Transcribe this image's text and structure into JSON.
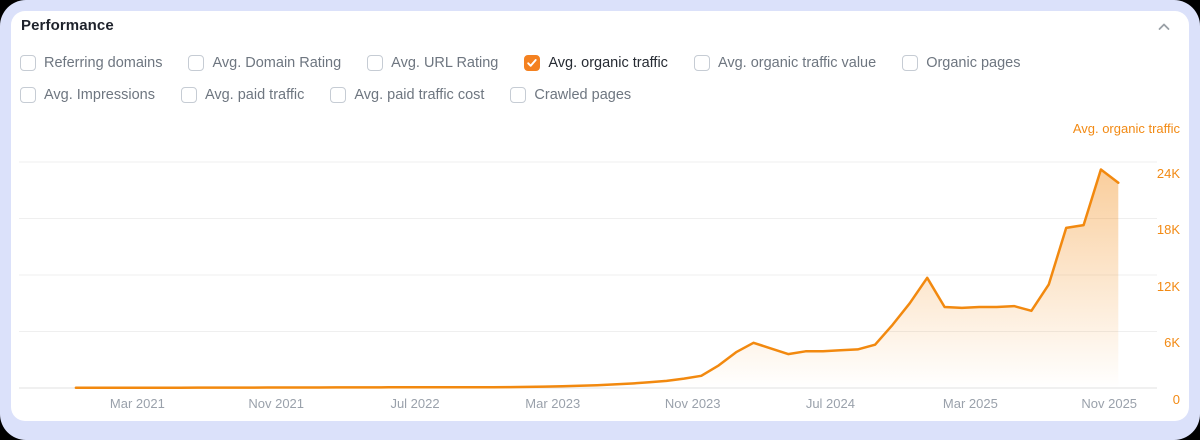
{
  "panel": {
    "title": "Performance",
    "collapse_icon": "chevron-up"
  },
  "metrics": {
    "rows": [
      [
        {
          "label": "Referring domains",
          "checked": false
        },
        {
          "label": "Avg. Domain Rating",
          "checked": false
        },
        {
          "label": "Avg. URL Rating",
          "checked": false
        },
        {
          "label": "Avg. organic traffic",
          "checked": true
        },
        {
          "label": "Avg. organic traffic value",
          "checked": false
        },
        {
          "label": "Organic pages",
          "checked": false
        }
      ],
      [
        {
          "label": "Avg. Impressions",
          "checked": false
        },
        {
          "label": "Avg. paid traffic",
          "checked": false
        },
        {
          "label": "Avg. paid traffic cost",
          "checked": false
        },
        {
          "label": "Crawled pages",
          "checked": false
        }
      ]
    ]
  },
  "colors": {
    "accent_orange": "#f48120",
    "line_orange": "#f2890f",
    "axis_tick_gray": "#9aa1ab",
    "gridline": "#efefef",
    "baseline": "#e2e2e2",
    "page_background": "#dbe1fa",
    "card_background": "#ffffff"
  },
  "chart_data": {
    "type": "area",
    "title": "Avg. organic traffic",
    "ylabel": "Avg. organic traffic",
    "legend_position": "top-right",
    "grid": true,
    "ylim": [
      0,
      25800
    ],
    "y_ticks": [
      {
        "label": "24K",
        "value": 24000
      },
      {
        "label": "18K",
        "value": 18000
      },
      {
        "label": "12K",
        "value": 12000
      },
      {
        "label": "6K",
        "value": 6000
      },
      {
        "label": "0",
        "value": 0
      }
    ],
    "x_ticks": [
      {
        "label": "Mar 2021",
        "pos": 0.104
      },
      {
        "label": "Nov 2021",
        "pos": 0.226
      },
      {
        "label": "Jul 2022",
        "pos": 0.348
      },
      {
        "label": "Mar 2023",
        "pos": 0.469
      },
      {
        "label": "Nov 2023",
        "pos": 0.592
      },
      {
        "label": "Jul 2024",
        "pos": 0.713
      },
      {
        "label": "Mar 2025",
        "pos": 0.836
      },
      {
        "label": "Nov 2025",
        "pos": 0.958
      }
    ],
    "x_start_frac": 0.05,
    "x_end_frac": 0.966,
    "area_color": "#f28a14",
    "series": [
      {
        "name": "Avg. organic traffic",
        "color": "#f2890f",
        "interval": "monthly",
        "start": "Nov 2020",
        "end": "Nov 2025",
        "values": [
          20,
          20,
          20,
          30,
          30,
          30,
          30,
          40,
          40,
          40,
          40,
          50,
          50,
          50,
          50,
          60,
          60,
          60,
          70,
          70,
          70,
          80,
          80,
          90,
          90,
          100,
          120,
          150,
          180,
          240,
          300,
          380,
          480,
          600,
          750,
          1000,
          1300,
          2400,
          3800,
          4800,
          4200,
          3600,
          3900,
          3900,
          4000,
          4100,
          4600,
          6700,
          9000,
          11700,
          8600,
          8500,
          8600,
          8600,
          8700,
          8200,
          11000,
          17000,
          17300,
          23200,
          21800
        ]
      }
    ]
  }
}
